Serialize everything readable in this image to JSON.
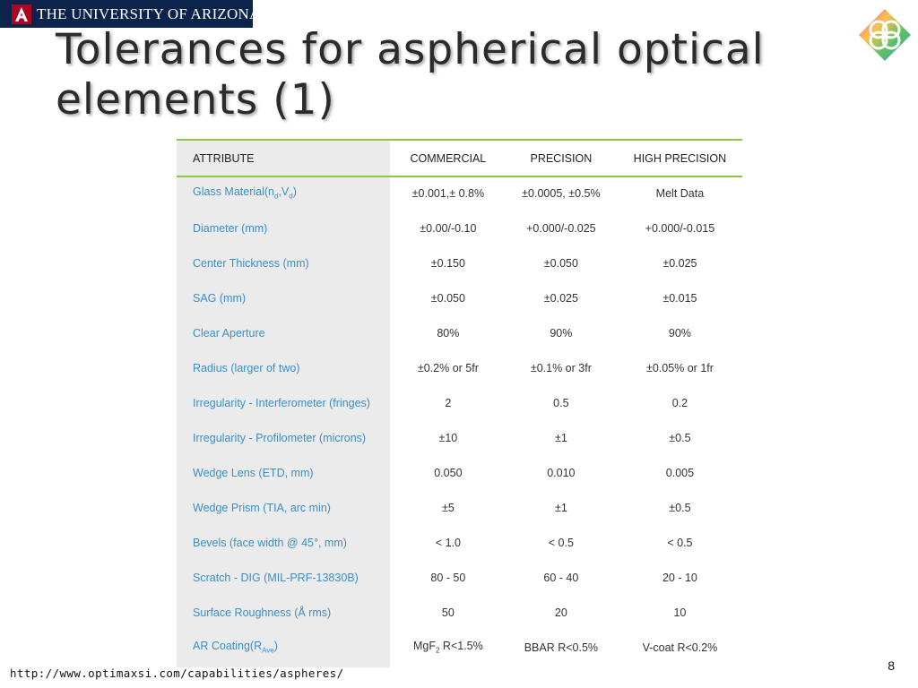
{
  "header": {
    "university_name": "THE UNIVERSITY OF ARIZONA®"
  },
  "slide": {
    "title": "Tolerances for aspherical optical elements (1)",
    "page_number": "8",
    "source_url": "http://www.optimaxsi.com/capabilities/aspheres/"
  },
  "table": {
    "columns": [
      "ATTRIBUTE",
      "COMMERCIAL",
      "PRECISION",
      "HIGH PRECISION"
    ],
    "rows": [
      {
        "attribute": "Glass Material(nd,Vd)",
        "commercial": "±0.001,± 0.8%",
        "precision": "±0.0005, ±0.5%",
        "high_precision": "Melt Data"
      },
      {
        "attribute": "Diameter (mm)",
        "commercial": "±0.00/-0.10",
        "precision": "+0.000/-0.025",
        "high_precision": "+0.000/-0.015"
      },
      {
        "attribute": "Center Thickness (mm)",
        "commercial": "±0.150",
        "precision": "±0.050",
        "high_precision": "±0.025"
      },
      {
        "attribute": "SAG (mm)",
        "commercial": "±0.050",
        "precision": "±0.025",
        "high_precision": "±0.015"
      },
      {
        "attribute": "Clear Aperture",
        "commercial": "80%",
        "precision": "90%",
        "high_precision": "90%"
      },
      {
        "attribute": "Radius (larger of two)",
        "commercial": "±0.2% or 5fr",
        "precision": "±0.1% or 3fr",
        "high_precision": "±0.05% or 1fr"
      },
      {
        "attribute": "Irregularity - Interferometer (fringes)",
        "commercial": "2",
        "precision": "0.5",
        "high_precision": "0.2"
      },
      {
        "attribute": "Irregularity - Profilometer (microns)",
        "commercial": "±10",
        "precision": "±1",
        "high_precision": "±0.5"
      },
      {
        "attribute": "Wedge Lens (ETD, mm)",
        "commercial": "0.050",
        "precision": "0.010",
        "high_precision": "0.005"
      },
      {
        "attribute": "Wedge Prism (TIA, arc min)",
        "commercial": "±5",
        "precision": "±1",
        "high_precision": "±0.5"
      },
      {
        "attribute": "Bevels (face width @ 45°, mm)",
        "commercial": "< 1.0",
        "precision": "< 0.5",
        "high_precision": "< 0.5"
      },
      {
        "attribute": "Scratch - DIG (MIL-PRF-13830B)",
        "commercial": "80 - 50",
        "precision": "60 - 40",
        "high_precision": "20 - 10"
      },
      {
        "attribute": "Surface Roughness (Å rms)",
        "commercial": "50",
        "precision": "20",
        "high_precision": "10"
      },
      {
        "attribute": "AR Coating(RAve)",
        "commercial": "MgF2 R<1.5%",
        "precision": "BBAR R<0.5%",
        "high_precision": "V-coat R<0.2%"
      }
    ]
  },
  "colors": {
    "banner": "#0c234b",
    "accent_line": "#8dc63f",
    "attribute_text": "#3a8fc9",
    "attribute_column_bg": "#ebebeb"
  },
  "icons": {
    "university_logo": "ua-block-a-icon",
    "corner_logo": "interlocked-rings-diamond-icon"
  }
}
